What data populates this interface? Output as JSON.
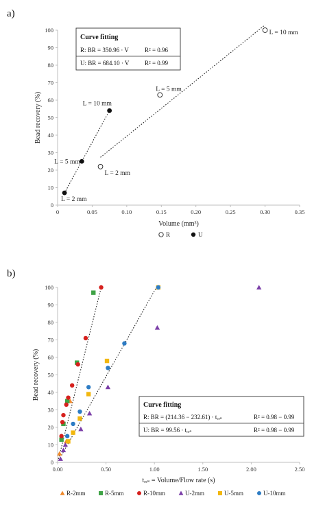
{
  "chart_data": [
    {
      "type": "scatter",
      "panel": "a)",
      "title": "",
      "xlabel": "Volume (mm³)",
      "ylabel": "Bead recovery (%)",
      "xlim": [
        0,
        0.35
      ],
      "ylim": [
        0,
        100
      ],
      "xticks": [
        "0",
        "0.05",
        "0.10",
        "0.15",
        "0.20",
        "0.25",
        "0.30",
        "0.35"
      ],
      "yticks": [
        "0",
        "10",
        "20",
        "30",
        "40",
        "50",
        "60",
        "70",
        "80",
        "90",
        "100"
      ],
      "legend_position": "bottom",
      "series": [
        {
          "name": "R",
          "marker": "open-circle",
          "color": "#222222",
          "points": [
            {
              "x": 0.062,
              "y": 22,
              "label": "L = 2 mm"
            },
            {
              "x": 0.148,
              "y": 63,
              "label": "L = 5 mm"
            },
            {
              "x": 0.3,
              "y": 100,
              "label": "L = 10 mm"
            }
          ]
        },
        {
          "name": "U",
          "marker": "filled-circle",
          "color": "#111111",
          "points": [
            {
              "x": 0.01,
              "y": 7,
              "label": "L = 2 mm"
            },
            {
              "x": 0.035,
              "y": 25,
              "label": "L = 5 mm"
            },
            {
              "x": 0.075,
              "y": 54,
              "label": "L = 10 mm"
            }
          ]
        }
      ],
      "fit_box": {
        "title": "Curve fitting",
        "rows": [
          {
            "equation": "R: BR = 350.96 · V",
            "r2": "R² = 0.96"
          },
          {
            "equation": "U: BR = 684.10 · V",
            "r2": "R² = 0.99"
          }
        ]
      }
    },
    {
      "type": "scatter",
      "panel": "b)",
      "title": "",
      "xlabel": "tᵣₑₛ = Volume/Flow rate (s)",
      "ylabel": "Bead recovery (%)",
      "xlim": [
        0,
        2.5
      ],
      "ylim": [
        0,
        100
      ],
      "xticks": [
        "0.00",
        "0.50",
        "1.00",
        "1.50",
        "2.00",
        "2.50"
      ],
      "yticks": [
        "0",
        "10",
        "20",
        "30",
        "40",
        "50",
        "60",
        "70",
        "80",
        "90",
        "100"
      ],
      "legend_position": "bottom",
      "series": [
        {
          "name": "R-2mm",
          "marker": "triangle",
          "color": "#f08a2c",
          "points": [
            {
              "x": 0.02,
              "y": 5
            },
            {
              "x": 0.09,
              "y": 12
            },
            {
              "x": 0.13,
              "y": 35
            }
          ]
        },
        {
          "name": "R-5mm",
          "marker": "square",
          "color": "#3fa346",
          "points": [
            {
              "x": 0.04,
              "y": 13
            },
            {
              "x": 0.06,
              "y": 22
            },
            {
              "x": 0.1,
              "y": 35
            },
            {
              "x": 0.2,
              "y": 57
            },
            {
              "x": 0.37,
              "y": 97
            }
          ]
        },
        {
          "name": "R-10mm",
          "marker": "circle",
          "color": "#d6201d",
          "points": [
            {
              "x": 0.04,
              "y": 15
            },
            {
              "x": 0.05,
              "y": 23
            },
            {
              "x": 0.06,
              "y": 27
            },
            {
              "x": 0.09,
              "y": 33
            },
            {
              "x": 0.11,
              "y": 37
            },
            {
              "x": 0.15,
              "y": 44
            },
            {
              "x": 0.21,
              "y": 56
            },
            {
              "x": 0.29,
              "y": 71
            },
            {
              "x": 0.45,
              "y": 100
            }
          ]
        },
        {
          "name": "U-2mm",
          "marker": "triangle",
          "color": "#7b3ea8",
          "points": [
            {
              "x": 0.03,
              "y": 2
            },
            {
              "x": 0.06,
              "y": 7
            },
            {
              "x": 0.08,
              "y": 10
            },
            {
              "x": 0.24,
              "y": 19
            },
            {
              "x": 0.33,
              "y": 28
            },
            {
              "x": 0.52,
              "y": 43
            },
            {
              "x": 1.03,
              "y": 77
            },
            {
              "x": 2.08,
              "y": 100
            }
          ]
        },
        {
          "name": "U-5mm",
          "marker": "square",
          "color": "#f2b70f",
          "points": [
            {
              "x": 0.11,
              "y": 12
            },
            {
              "x": 0.16,
              "y": 17
            },
            {
              "x": 0.23,
              "y": 25
            },
            {
              "x": 0.32,
              "y": 39
            },
            {
              "x": 0.51,
              "y": 58
            },
            {
              "x": 1.04,
              "y": 100
            }
          ]
        },
        {
          "name": "U-10mm",
          "marker": "circle",
          "color": "#2d7cc4",
          "points": [
            {
              "x": 0.1,
              "y": 15
            },
            {
              "x": 0.16,
              "y": 22
            },
            {
              "x": 0.23,
              "y": 29
            },
            {
              "x": 0.32,
              "y": 43
            },
            {
              "x": 0.52,
              "y": 54
            },
            {
              "x": 0.69,
              "y": 68
            },
            {
              "x": 1.04,
              "y": 100
            }
          ]
        }
      ],
      "fit_box": {
        "title": "Curve fitting",
        "rows": [
          {
            "equation": "R: BR = (214.36 − 232.61) · tᵣₑₛ",
            "r2": "R² = 0.98 − 0.99"
          },
          {
            "equation": "U: BR = 99.56 · tᵣₑₛ",
            "r2": "R² = 0.98 − 0.99"
          }
        ]
      }
    }
  ]
}
